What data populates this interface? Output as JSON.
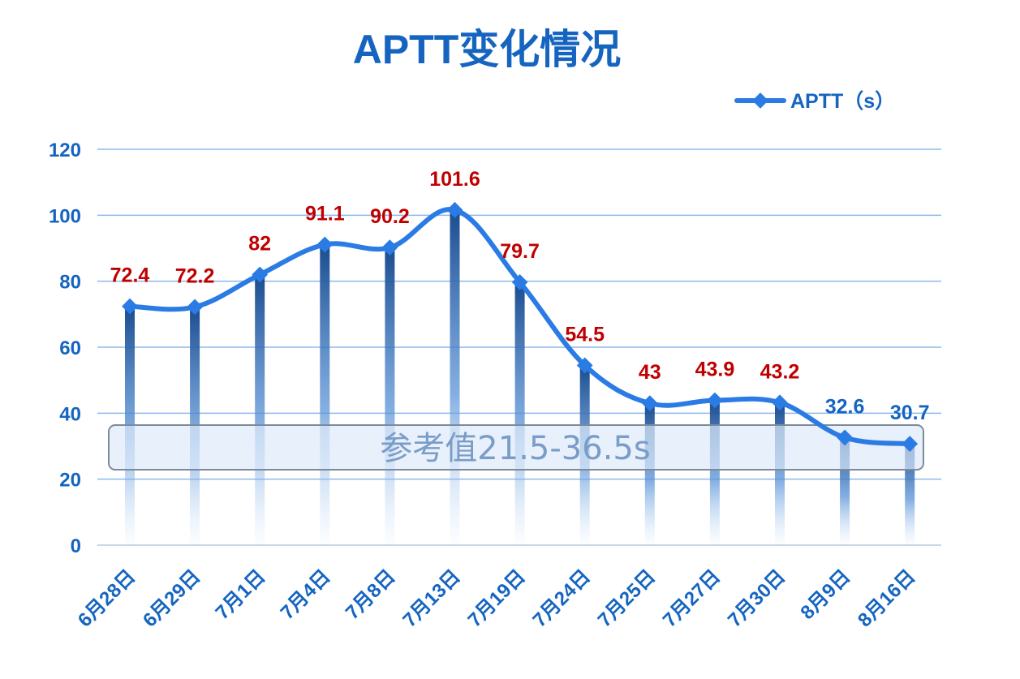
{
  "chart_data": {
    "type": "line",
    "title": "APTT变化情况",
    "categories": [
      "6月28日",
      "6月29日",
      "7月1日",
      "7月4日",
      "7月8日",
      "7月13日",
      "7月19日",
      "7月24日",
      "7月25日",
      "7月27日",
      "7月30日",
      "8月9日",
      "8月16日"
    ],
    "series": [
      {
        "name": "APTT（s）",
        "values": [
          72.4,
          72.2,
          82,
          91.1,
          90.2,
          101.6,
          79.7,
          54.5,
          43,
          43.9,
          43.2,
          32.6,
          30.7
        ],
        "data_labels": [
          "72.4",
          "72.2",
          "82",
          "91.1",
          "90.2",
          "101.6",
          "79.7",
          "54.5",
          "43",
          "43.9",
          "43.2",
          "32.6",
          "30.7"
        ],
        "color": "#2B7BE4"
      }
    ],
    "ylim": [
      0,
      120
    ],
    "yticks": [
      "0",
      "20",
      "40",
      "60",
      "80",
      "100",
      "120"
    ],
    "grid": true,
    "legend_position": "top-right",
    "reference_range": {
      "label": "参考值21.5-36.5s",
      "low": 21.5,
      "high": 36.5
    },
    "colors": {
      "line": "#2B7BE4",
      "grid": "#8DB8EC",
      "axis_text": "#1565C0",
      "label_above_range": "#C00000",
      "label_in_range": "#1565C0"
    },
    "xlabel": "",
    "ylabel": ""
  }
}
